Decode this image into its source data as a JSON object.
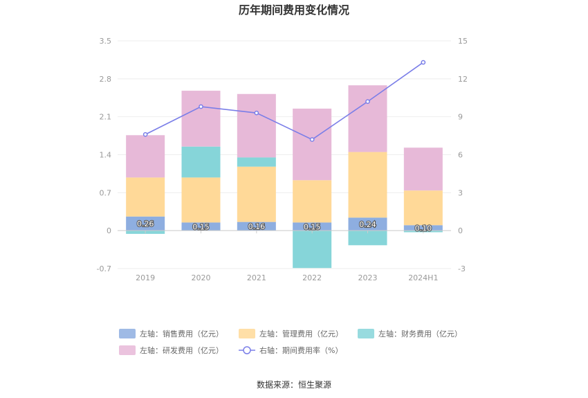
{
  "chart_data": {
    "type": "bar",
    "title": "历年期间费用变化情况",
    "categories": [
      "2019",
      "2020",
      "2021",
      "2022",
      "2023",
      "2024H1"
    ],
    "stacked": true,
    "left_axis": {
      "ylim": [
        -0.7,
        3.5
      ],
      "ticks": [
        "-0.7",
        "0",
        "0.7",
        "1.4",
        "2.1",
        "2.8",
        "3.5"
      ]
    },
    "right_axis": {
      "ylim": [
        -3,
        15
      ],
      "ticks": [
        "-3",
        "0",
        "3",
        "6",
        "9",
        "12",
        "15"
      ]
    },
    "series": [
      {
        "name": "左轴：销售费用（亿元）",
        "axis": "left",
        "type": "bar",
        "color": "#8eaee0",
        "values": [
          0.26,
          0.15,
          0.16,
          0.15,
          0.24,
          0.1
        ],
        "labels": [
          "0.26",
          "0.15",
          "0.16",
          "0.15",
          "0.24",
          "0.10"
        ]
      },
      {
        "name": "左轴：管理费用（亿元）",
        "axis": "left",
        "type": "bar",
        "color": "#ffd998",
        "values": [
          0.72,
          0.83,
          1.02,
          0.78,
          1.21,
          0.64
        ]
      },
      {
        "name": "左轴：财务费用（亿元）",
        "axis": "left",
        "type": "bar",
        "color": "#86d5d9",
        "values": [
          -0.06,
          0.57,
          0.17,
          -0.69,
          -0.27,
          -0.03
        ]
      },
      {
        "name": "左轴：研发费用（亿元）",
        "axis": "left",
        "type": "bar",
        "color": "#e7b9d8",
        "values": [
          0.78,
          1.03,
          1.17,
          1.32,
          1.23,
          0.79
        ]
      },
      {
        "name": "右轴：期间费用率（%）",
        "axis": "right",
        "type": "line",
        "color": "#7a7ee8",
        "values": [
          7.6,
          9.8,
          9.3,
          7.2,
          10.2,
          13.3
        ]
      }
    ],
    "grid": true,
    "legend_position": "bottom",
    "source": "数据来源：恒生聚源"
  }
}
